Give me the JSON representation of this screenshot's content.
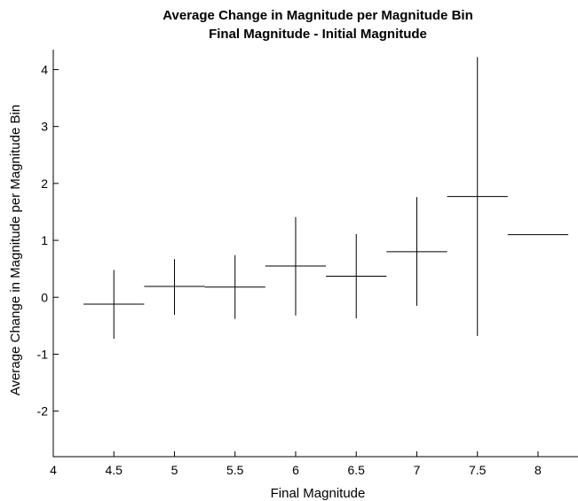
{
  "chart_data": {
    "type": "errorbar",
    "title": "Average Change in Magnitude per Magnitude Bin",
    "subtitle": "Final Magnitude - Initial Magnitude",
    "xlabel": "Final Magnitude",
    "ylabel": "Average Change in Magnitude per Magnitude Bin",
    "xlim": [
      4,
      8.33
    ],
    "ylim": [
      -2.8,
      4.35
    ],
    "xticks": [
      4,
      4.5,
      5,
      5.5,
      6,
      6.5,
      7,
      7.5,
      8
    ],
    "xtick_labels": [
      "4",
      "4.5",
      "5",
      "5.5",
      "6",
      "6.5",
      "7",
      "7.5",
      "8"
    ],
    "yticks": [
      -2,
      -1,
      0,
      1,
      2,
      3,
      4
    ],
    "ytick_labels": [
      "-2",
      "-1",
      "0",
      "1",
      "2",
      "3",
      "4"
    ],
    "grid": false,
    "bin_width": 0.5,
    "series": [
      {
        "color": "#000000",
        "points": [
          {
            "x": 4.5,
            "y": -0.12,
            "ylow": -0.73,
            "yhigh": 0.48
          },
          {
            "x": 5.0,
            "y": 0.19,
            "ylow": -0.31,
            "yhigh": 0.67
          },
          {
            "x": 5.5,
            "y": 0.18,
            "ylow": -0.38,
            "yhigh": 0.74
          },
          {
            "x": 6.0,
            "y": 0.55,
            "ylow": -0.32,
            "yhigh": 1.41
          },
          {
            "x": 6.5,
            "y": 0.37,
            "ylow": -0.37,
            "yhigh": 1.11
          },
          {
            "x": 7.0,
            "y": 0.8,
            "ylow": -0.15,
            "yhigh": 1.76
          },
          {
            "x": 7.5,
            "y": 1.77,
            "ylow": -0.68,
            "yhigh": 4.22
          },
          {
            "x": 8.0,
            "y": 1.1,
            "ylow": 1.1,
            "yhigh": 1.1
          }
        ]
      }
    ]
  }
}
